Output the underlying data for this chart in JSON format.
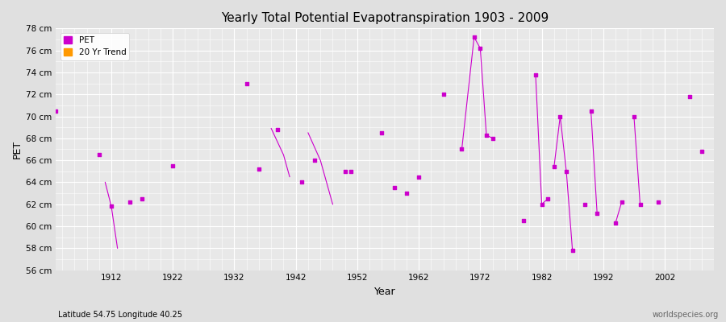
{
  "title": "Yearly Total Potential Evapotranspiration 1903 - 2009",
  "xlabel": "Year",
  "ylabel": "PET",
  "subtitle_left": "Latitude 54.75 Longitude 40.25",
  "subtitle_right": "worldspecies.org",
  "xlim": [
    1903,
    2010
  ],
  "ylim": [
    56,
    78
  ],
  "yticks": [
    56,
    58,
    60,
    62,
    64,
    66,
    68,
    70,
    72,
    74,
    76,
    78
  ],
  "ytick_labels": [
    "56 cm",
    "58 cm",
    "60 cm",
    "62 cm",
    "64 cm",
    "66 cm",
    "68 cm",
    "70 cm",
    "72 cm",
    "74 cm",
    "76 cm",
    "78 cm"
  ],
  "xticks": [
    1912,
    1922,
    1932,
    1942,
    1952,
    1962,
    1972,
    1982,
    1992,
    2002
  ],
  "background_color": "#e0e0e0",
  "plot_background": "#e8e8e8",
  "grid_color": "#ffffff",
  "pet_color": "#cc00cc",
  "trend_color": "#ff9900",
  "pet_data": [
    [
      1903,
      70.5
    ],
    [
      1910,
      66.5
    ],
    [
      1912,
      61.8
    ],
    [
      1915,
      62.2
    ],
    [
      1917,
      62.5
    ],
    [
      1922,
      65.5
    ],
    [
      1934,
      73.0
    ],
    [
      1936,
      65.2
    ],
    [
      1939,
      68.8
    ],
    [
      1943,
      64.0
    ],
    [
      1945,
      66.0
    ],
    [
      1950,
      65.0
    ],
    [
      1951,
      65.0
    ],
    [
      1956,
      68.5
    ],
    [
      1958,
      63.5
    ],
    [
      1960,
      63.0
    ],
    [
      1962,
      64.5
    ],
    [
      1966,
      72.0
    ],
    [
      1969,
      67.0
    ],
    [
      1974,
      68.0
    ],
    [
      1979,
      60.5
    ],
    [
      1983,
      62.5
    ],
    [
      1986,
      65.0
    ],
    [
      1989,
      62.0
    ],
    [
      1991,
      61.2
    ],
    [
      1995,
      62.2
    ],
    [
      1998,
      62.0
    ],
    [
      2001,
      62.2
    ],
    [
      2006,
      71.8
    ],
    [
      2008,
      66.8
    ]
  ],
  "connected_segments": [
    [
      [
        1911,
        64.0
      ],
      [
        1912,
        61.8
      ],
      [
        1913,
        58.0
      ]
    ],
    [
      [
        1938,
        68.9
      ],
      [
        1940,
        66.5
      ],
      [
        1941,
        64.5
      ]
    ],
    [
      [
        1944,
        68.5
      ],
      [
        1946,
        66.0
      ],
      [
        1948,
        62.0
      ]
    ],
    [
      [
        1969,
        67.0
      ],
      [
        1971,
        77.2
      ],
      [
        1972,
        76.2
      ],
      [
        1973,
        68.3
      ],
      [
        1974,
        68.0
      ]
    ],
    [
      [
        1981,
        73.8
      ],
      [
        1982,
        62.0
      ],
      [
        1983,
        62.5
      ]
    ],
    [
      [
        1984,
        65.4
      ],
      [
        1985,
        70.0
      ],
      [
        1986,
        65.0
      ],
      [
        1987,
        57.8
      ]
    ],
    [
      [
        1990,
        70.5
      ],
      [
        1991,
        61.2
      ]
    ],
    [
      [
        1994,
        60.3
      ],
      [
        1995,
        62.2
      ]
    ],
    [
      [
        1997,
        70.0
      ],
      [
        1998,
        62.0
      ]
    ]
  ],
  "isolated_points": [
    [
      1903,
      70.5
    ],
    [
      1910,
      66.5
    ],
    [
      1912,
      61.8
    ],
    [
      1915,
      62.2
    ],
    [
      1917,
      62.5
    ],
    [
      1922,
      65.5
    ],
    [
      1934,
      73.0
    ],
    [
      1936,
      65.2
    ],
    [
      1939,
      68.8
    ],
    [
      1943,
      64.0
    ],
    [
      1945,
      66.0
    ],
    [
      1950,
      65.0
    ],
    [
      1951,
      65.0
    ],
    [
      1956,
      68.5
    ],
    [
      1958,
      63.5
    ],
    [
      1960,
      63.0
    ],
    [
      1962,
      64.5
    ],
    [
      1966,
      72.0
    ],
    [
      1969,
      67.0
    ],
    [
      1971,
      77.2
    ],
    [
      1972,
      76.2
    ],
    [
      1973,
      68.3
    ],
    [
      1974,
      68.0
    ],
    [
      1979,
      60.5
    ],
    [
      1981,
      73.8
    ],
    [
      1982,
      62.0
    ],
    [
      1983,
      62.5
    ],
    [
      1984,
      65.4
    ],
    [
      1985,
      70.0
    ],
    [
      1986,
      65.0
    ],
    [
      1987,
      57.8
    ],
    [
      1989,
      62.0
    ],
    [
      1990,
      70.5
    ],
    [
      1991,
      61.2
    ],
    [
      1994,
      60.3
    ],
    [
      1995,
      62.2
    ],
    [
      1997,
      70.0
    ],
    [
      1998,
      62.0
    ],
    [
      2001,
      62.2
    ],
    [
      2006,
      71.8
    ],
    [
      2008,
      66.8
    ]
  ]
}
